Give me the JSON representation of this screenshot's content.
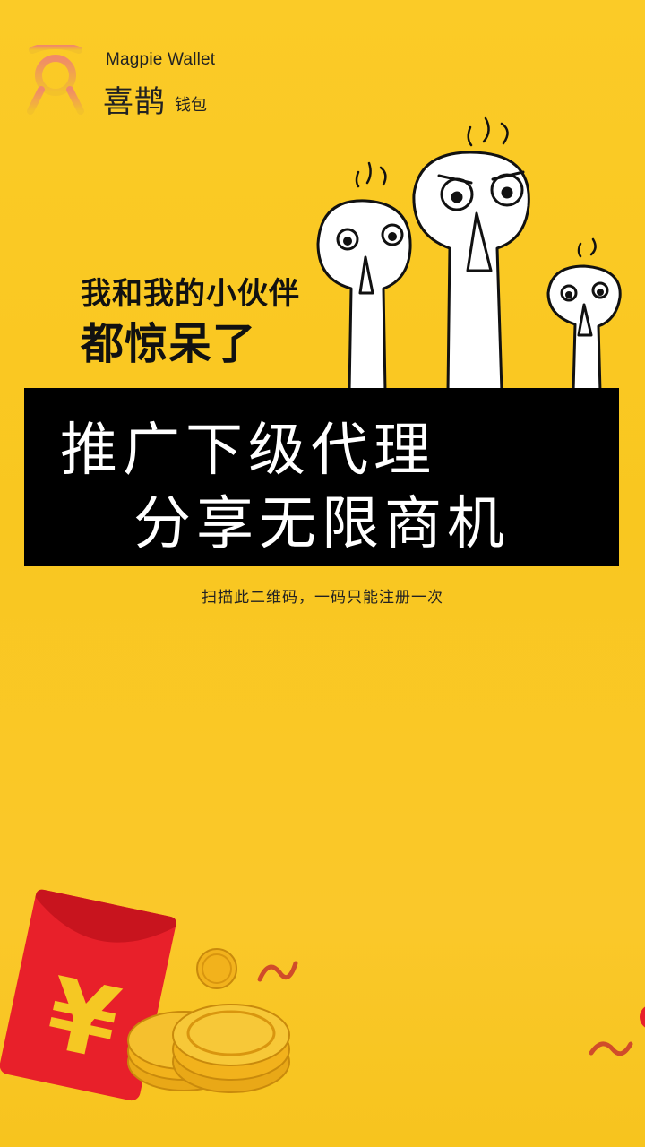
{
  "brand": {
    "name_en": "Magpie Wallet",
    "name_cn": "喜鹊",
    "name_cn_suffix": "钱包"
  },
  "headline": {
    "line1": "我和我的小伙伴",
    "line2": "都惊呆了"
  },
  "banner": {
    "line1": "推广下级代理",
    "line2": "分享无限商机"
  },
  "hint": "扫描此二维码，一码只能注册一次",
  "colors": {
    "background": "#FBCB27",
    "banner": "#000000",
    "logo": "#F0A040",
    "envelope": "#E8202A",
    "coin": "#F2B21C"
  },
  "icons": [
    "magpie-logo-icon",
    "shocked-characters-icon",
    "red-envelope-icon",
    "gold-coins-icon",
    "ribbon-icon"
  ]
}
